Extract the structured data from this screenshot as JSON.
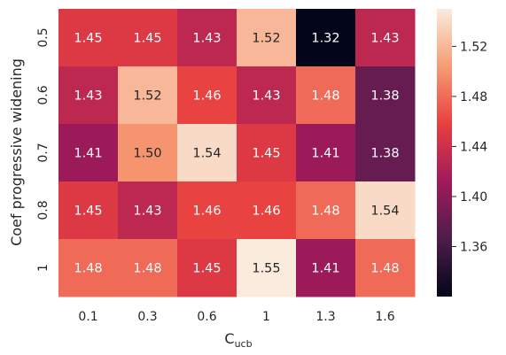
{
  "chart_data": {
    "type": "heatmap",
    "title": "",
    "xlabel": "C",
    "xlabel_sub": "ucb",
    "ylabel": "Coef progressive widening",
    "x_categories": [
      "0.1",
      "0.3",
      "0.6",
      "1",
      "1.3",
      "1.6"
    ],
    "y_categories": [
      "0.5",
      "0.6",
      "0.7",
      "0.8",
      "1"
    ],
    "values": [
      [
        1.45,
        1.45,
        1.43,
        1.52,
        1.32,
        1.43
      ],
      [
        1.43,
        1.52,
        1.46,
        1.43,
        1.48,
        1.38
      ],
      [
        1.41,
        1.5,
        1.54,
        1.45,
        1.41,
        1.38
      ],
      [
        1.45,
        1.43,
        1.46,
        1.46,
        1.48,
        1.54
      ],
      [
        1.48,
        1.48,
        1.45,
        1.55,
        1.41,
        1.48
      ]
    ],
    "cell_labels": [
      [
        "1.45",
        "1.45",
        "1.43",
        "1.52",
        "1.32",
        "1.43"
      ],
      [
        "1.43",
        "1.52",
        "1.46",
        "1.43",
        "1.48",
        "1.38"
      ],
      [
        "1.41",
        "1.50",
        "1.54",
        "1.45",
        "1.41",
        "1.38"
      ],
      [
        "1.45",
        "1.43",
        "1.46",
        "1.46",
        "1.48",
        "1.54"
      ],
      [
        "1.48",
        "1.48",
        "1.45",
        "1.55",
        "1.41",
        "1.48"
      ]
    ],
    "colorbar": {
      "min": 1.32,
      "max": 1.55,
      "ticks": [
        1.36,
        1.4,
        1.44,
        1.48,
        1.52
      ],
      "tick_labels": [
        "1.36",
        "1.40",
        "1.44",
        "1.48",
        "1.52"
      ],
      "colormap": "rocket",
      "stops": [
        "#03051a",
        "#4c1d4b",
        "#a11a5b",
        "#e83f3f",
        "#f69c73",
        "#faebdd"
      ]
    },
    "grid": false,
    "legend": "colorbar-right"
  }
}
